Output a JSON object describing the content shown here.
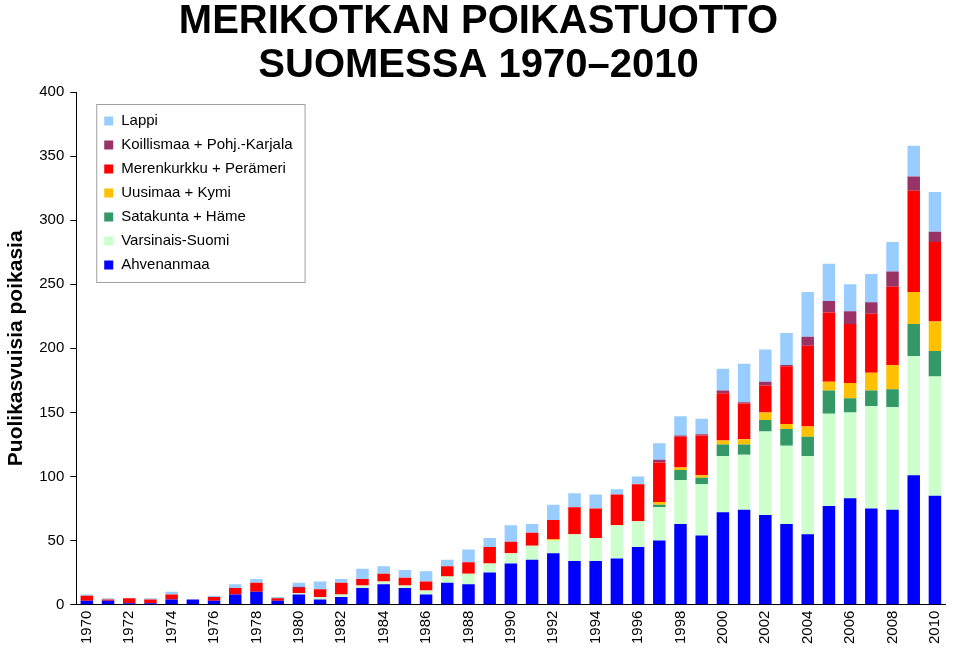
{
  "chart_data": {
    "type": "bar",
    "title": [
      "MERIKOTKAN POIKASTUOTTO",
      "SUOMESSA 1970–2010"
    ],
    "y_label": "Puolikasvuisia poikasia",
    "stacked": true,
    "grid": false,
    "legend": "upper left",
    "ylim": [
      0,
      400
    ],
    "yticks": [
      0,
      50,
      100,
      150,
      200,
      250,
      300,
      350,
      400
    ],
    "categories": [
      "1970",
      null,
      "1972",
      null,
      "1974",
      null,
      "1976",
      null,
      "1978",
      null,
      "1980",
      null,
      "1982",
      null,
      "1984",
      null,
      "1986",
      null,
      "1988",
      null,
      "1990",
      null,
      "1992",
      null,
      "1994",
      null,
      "1996",
      null,
      "1998",
      null,
      "2000",
      null,
      "2002",
      null,
      "2004",
      null,
      "2006",
      null,
      "2008",
      null,
      "2010"
    ],
    "series": [
      {
        "name": "Lappi",
        "color": "#99ccff",
        "values": [
          1,
          1,
          0,
          1,
          2,
          0,
          1,
          3,
          3,
          1,
          3,
          6,
          3,
          8,
          6,
          6,
          8,
          5,
          10,
          7,
          13,
          7,
          12,
          11,
          11,
          4,
          6,
          13,
          15,
          12,
          17,
          30,
          25,
          25,
          35,
          29,
          21,
          22,
          23,
          24,
          31
        ]
      },
      {
        "name": "Koillismaa + Pohj.-Karjala",
        "color": "#993366",
        "values": [
          0,
          0,
          0,
          0,
          0,
          0,
          0,
          0,
          0,
          0,
          1,
          0,
          0,
          0,
          0,
          0,
          0,
          0,
          0,
          0,
          0,
          0,
          0,
          0,
          0,
          0,
          0,
          2,
          1,
          1,
          2,
          1,
          3,
          1,
          7,
          9,
          10,
          9,
          12,
          11,
          8
        ]
      },
      {
        "name": "Merenkurkku + Perämeri",
        "color": "#ff0000",
        "values": [
          4,
          1,
          4,
          3,
          4,
          0,
          3,
          5,
          7,
          2,
          4,
          6,
          9,
          5,
          6,
          6,
          7,
          8,
          9,
          13,
          9,
          10,
          15,
          21,
          23,
          24,
          29,
          31,
          24,
          31,
          37,
          28,
          21,
          45,
          63,
          54,
          46,
          46,
          61,
          79,
          62
        ]
      },
      {
        "name": "Uusimaa + Kymi",
        "color": "#ffc000",
        "values": [
          0,
          0,
          0,
          0,
          0,
          0,
          0,
          0,
          0,
          0,
          0,
          0,
          0,
          0,
          0,
          0,
          0,
          0,
          0,
          0,
          0,
          0,
          1,
          0,
          0,
          0,
          0,
          2,
          2,
          2,
          3,
          4,
          6,
          4,
          8,
          7,
          12,
          14,
          19,
          25,
          23
        ]
      },
      {
        "name": "Satakunta + Häme",
        "color": "#339966",
        "values": [
          0,
          0,
          0,
          0,
          0,
          0,
          0,
          0,
          0,
          0,
          0,
          0,
          0,
          0,
          0,
          0,
          0,
          0,
          0,
          0,
          0,
          0,
          0,
          0,
          0,
          0,
          0,
          2,
          8,
          5,
          9,
          8,
          9,
          13,
          15,
          18,
          11,
          12,
          14,
          25,
          20
        ]
      },
      {
        "name": "Varsinais-Suomi",
        "color": "#ccffcc",
        "values": [
          0,
          0,
          0,
          0,
          0,
          0,
          0,
          0,
          0,
          0,
          1,
          2,
          2,
          2,
          2,
          2,
          3,
          5,
          8,
          7,
          8,
          11,
          10,
          21,
          18,
          26,
          20,
          26,
          34,
          40,
          44,
          43,
          65,
          61,
          61,
          72,
          67,
          80,
          80,
          93,
          93
        ]
      },
      {
        "name": "Ahvenanmaa",
        "color": "#0000ff",
        "values": [
          3,
          3,
          1,
          1,
          4,
          4,
          3,
          8,
          10,
          3,
          8,
          4,
          6,
          13,
          16,
          13,
          8,
          17,
          16,
          25,
          32,
          35,
          40,
          34,
          34,
          36,
          45,
          50,
          63,
          54,
          72,
          74,
          70,
          63,
          55,
          77,
          83,
          75,
          74,
          101,
          85
        ]
      }
    ]
  }
}
